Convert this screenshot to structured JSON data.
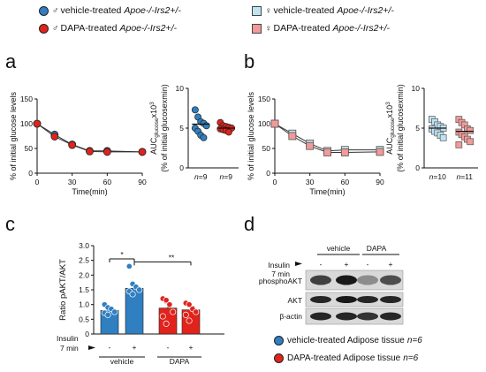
{
  "legend": {
    "items": [
      {
        "label": "vehicle-treated",
        "genotype": "Apoe-/-Irs2+/-",
        "symbol": "♂",
        "color": "#2f7fc1",
        "shape": "circle"
      },
      {
        "label": "DAPA-treated",
        "genotype": "Apoe-/-Irs2+/-",
        "symbol": "♂",
        "color": "#e0231c",
        "shape": "circle"
      },
      {
        "label": "vehicle-treated",
        "genotype": "Apoe-/-Irs2+/-",
        "symbol": "♀",
        "color": "#bfe3f2",
        "shape": "square"
      },
      {
        "label": "DAPA-treated",
        "genotype": "Apoe-/-Irs2+/-",
        "symbol": "♀",
        "color": "#f19a98",
        "shape": "square"
      }
    ]
  },
  "panels": {
    "a": "a",
    "b": "b",
    "c": "c",
    "d": "d"
  },
  "chart_data": [
    {
      "id": "a-line",
      "type": "line",
      "ylabel": "% of initial glucose levels",
      "xlabel": "Time(min)",
      "xlim": [
        0,
        90
      ],
      "ylim": [
        0,
        150
      ],
      "xticks": [
        "0",
        "30",
        "60",
        "90"
      ],
      "yticks": [
        "0",
        "50",
        "100",
        "150"
      ],
      "x": [
        0,
        15,
        30,
        45,
        60,
        90
      ],
      "series": [
        {
          "color": "#2f7fc1",
          "values": [
            100,
            78,
            58,
            45,
            45,
            43
          ]
        },
        {
          "color": "#e0231c",
          "values": [
            100,
            74,
            57,
            44,
            43,
            43
          ]
        }
      ]
    },
    {
      "id": "a-scatter",
      "type": "scatter",
      "ylabel": "AUC_glucose x10^3",
      "ylabel2": "(% of initial glucosexmin)",
      "ylim": [
        0,
        10
      ],
      "yticks": [
        "0",
        "5",
        "10"
      ],
      "groups": [
        {
          "n_label": "n=9",
          "color": "#2f7fc1",
          "mean": 5.5,
          "values": [
            7.3,
            6.4,
            5.8,
            5.6,
            5.3,
            5.0,
            4.6,
            4.1,
            3.8
          ]
        },
        {
          "n_label": "n=9",
          "color": "#e0231c",
          "mean": 5.0,
          "values": [
            5.7,
            5.3,
            5.2,
            5.1,
            5.0,
            4.9,
            4.8,
            4.7,
            4.5
          ]
        }
      ]
    },
    {
      "id": "b-line",
      "type": "line",
      "ylabel": "% of initial glucose levels",
      "xlabel": "Time(min)",
      "xlim": [
        0,
        90
      ],
      "ylim": [
        0,
        150
      ],
      "xticks": [
        "0",
        "30",
        "60",
        "90"
      ],
      "yticks": [
        "0",
        "50",
        "100",
        "150"
      ],
      "x": [
        0,
        15,
        30,
        45,
        60,
        90
      ],
      "series": [
        {
          "color": "#bfe3f2",
          "values": [
            100,
            80,
            60,
            45,
            47,
            47
          ]
        },
        {
          "color": "#f19a98",
          "values": [
            100,
            75,
            55,
            42,
            42,
            43
          ]
        }
      ]
    },
    {
      "id": "b-scatter",
      "type": "scatter",
      "ylabel": "AUC_glucose x10^3",
      "ylabel2": "(% of initial glucosexmin)",
      "ylim": [
        0,
        10
      ],
      "yticks": [
        "0",
        "5",
        "10"
      ],
      "groups": [
        {
          "n_label": "n=10",
          "color": "#bfe3f2",
          "mean": 5.0,
          "values": [
            6.1,
            5.8,
            5.4,
            5.2,
            5.0,
            4.9,
            4.6,
            4.4,
            4.1,
            3.8
          ]
        },
        {
          "n_label": "n=11",
          "color": "#f19a98",
          "mean": 4.6,
          "values": [
            6.1,
            5.7,
            5.4,
            4.9,
            4.7,
            4.5,
            4.2,
            3.9,
            3.6,
            3.3,
            2.9
          ]
        }
      ]
    },
    {
      "id": "c-bar",
      "type": "bar",
      "ylabel": "Ratio pAKT/AKT",
      "ylim": [
        0,
        3.0
      ],
      "yticks": [
        "0",
        "0.5",
        "1.0",
        "1.5",
        "2.0",
        "2.5",
        "3.0"
      ],
      "insulin_label": "Insulin",
      "insulin_time": "7 min",
      "bars": [
        {
          "sign": "-",
          "group": "vehicle",
          "color": "#2f7fc1",
          "value": 0.8,
          "err": 0.08,
          "points": [
            1.0,
            0.9,
            0.85,
            0.75,
            0.72,
            0.65
          ]
        },
        {
          "sign": "+",
          "group": "vehicle",
          "color": "#2f7fc1",
          "value": 1.55,
          "err": 0.12,
          "points": [
            2.3,
            1.7,
            1.6,
            1.5,
            1.45,
            1.35
          ]
        },
        {
          "sign": "-",
          "group": "DAPA",
          "color": "#e0231c",
          "value": 0.88,
          "err": 0.18,
          "points": [
            1.2,
            1.15,
            1.0,
            0.75,
            0.6,
            0.35
          ]
        },
        {
          "sign": "+",
          "group": "DAPA",
          "color": "#e0231c",
          "value": 0.82,
          "err": 0.12,
          "points": [
            1.05,
            1.0,
            0.85,
            0.75,
            0.65,
            0.45
          ]
        }
      ],
      "groups": [
        "vehicle",
        "DAPA"
      ],
      "signif": [
        {
          "label": "*",
          "from": 0,
          "to": 1
        },
        {
          "label": "**",
          "from": 1,
          "to": 3
        }
      ]
    }
  ],
  "western": {
    "insulin_label": "Insulin",
    "insulin_time": "7 min",
    "groups": [
      "vehicle",
      "DAPA"
    ],
    "signs": [
      "-",
      "+",
      "-",
      "+"
    ],
    "rows": [
      "phosphoAKT",
      "AKT",
      "β-actin"
    ]
  },
  "tissue_legend": [
    {
      "label": "vehicle-treated Adipose tissue",
      "n": "n=6",
      "color": "#2f7fc1"
    },
    {
      "label": "DAPA-treated Adipose tissue",
      "n": "n=6",
      "color": "#e0231c"
    }
  ]
}
